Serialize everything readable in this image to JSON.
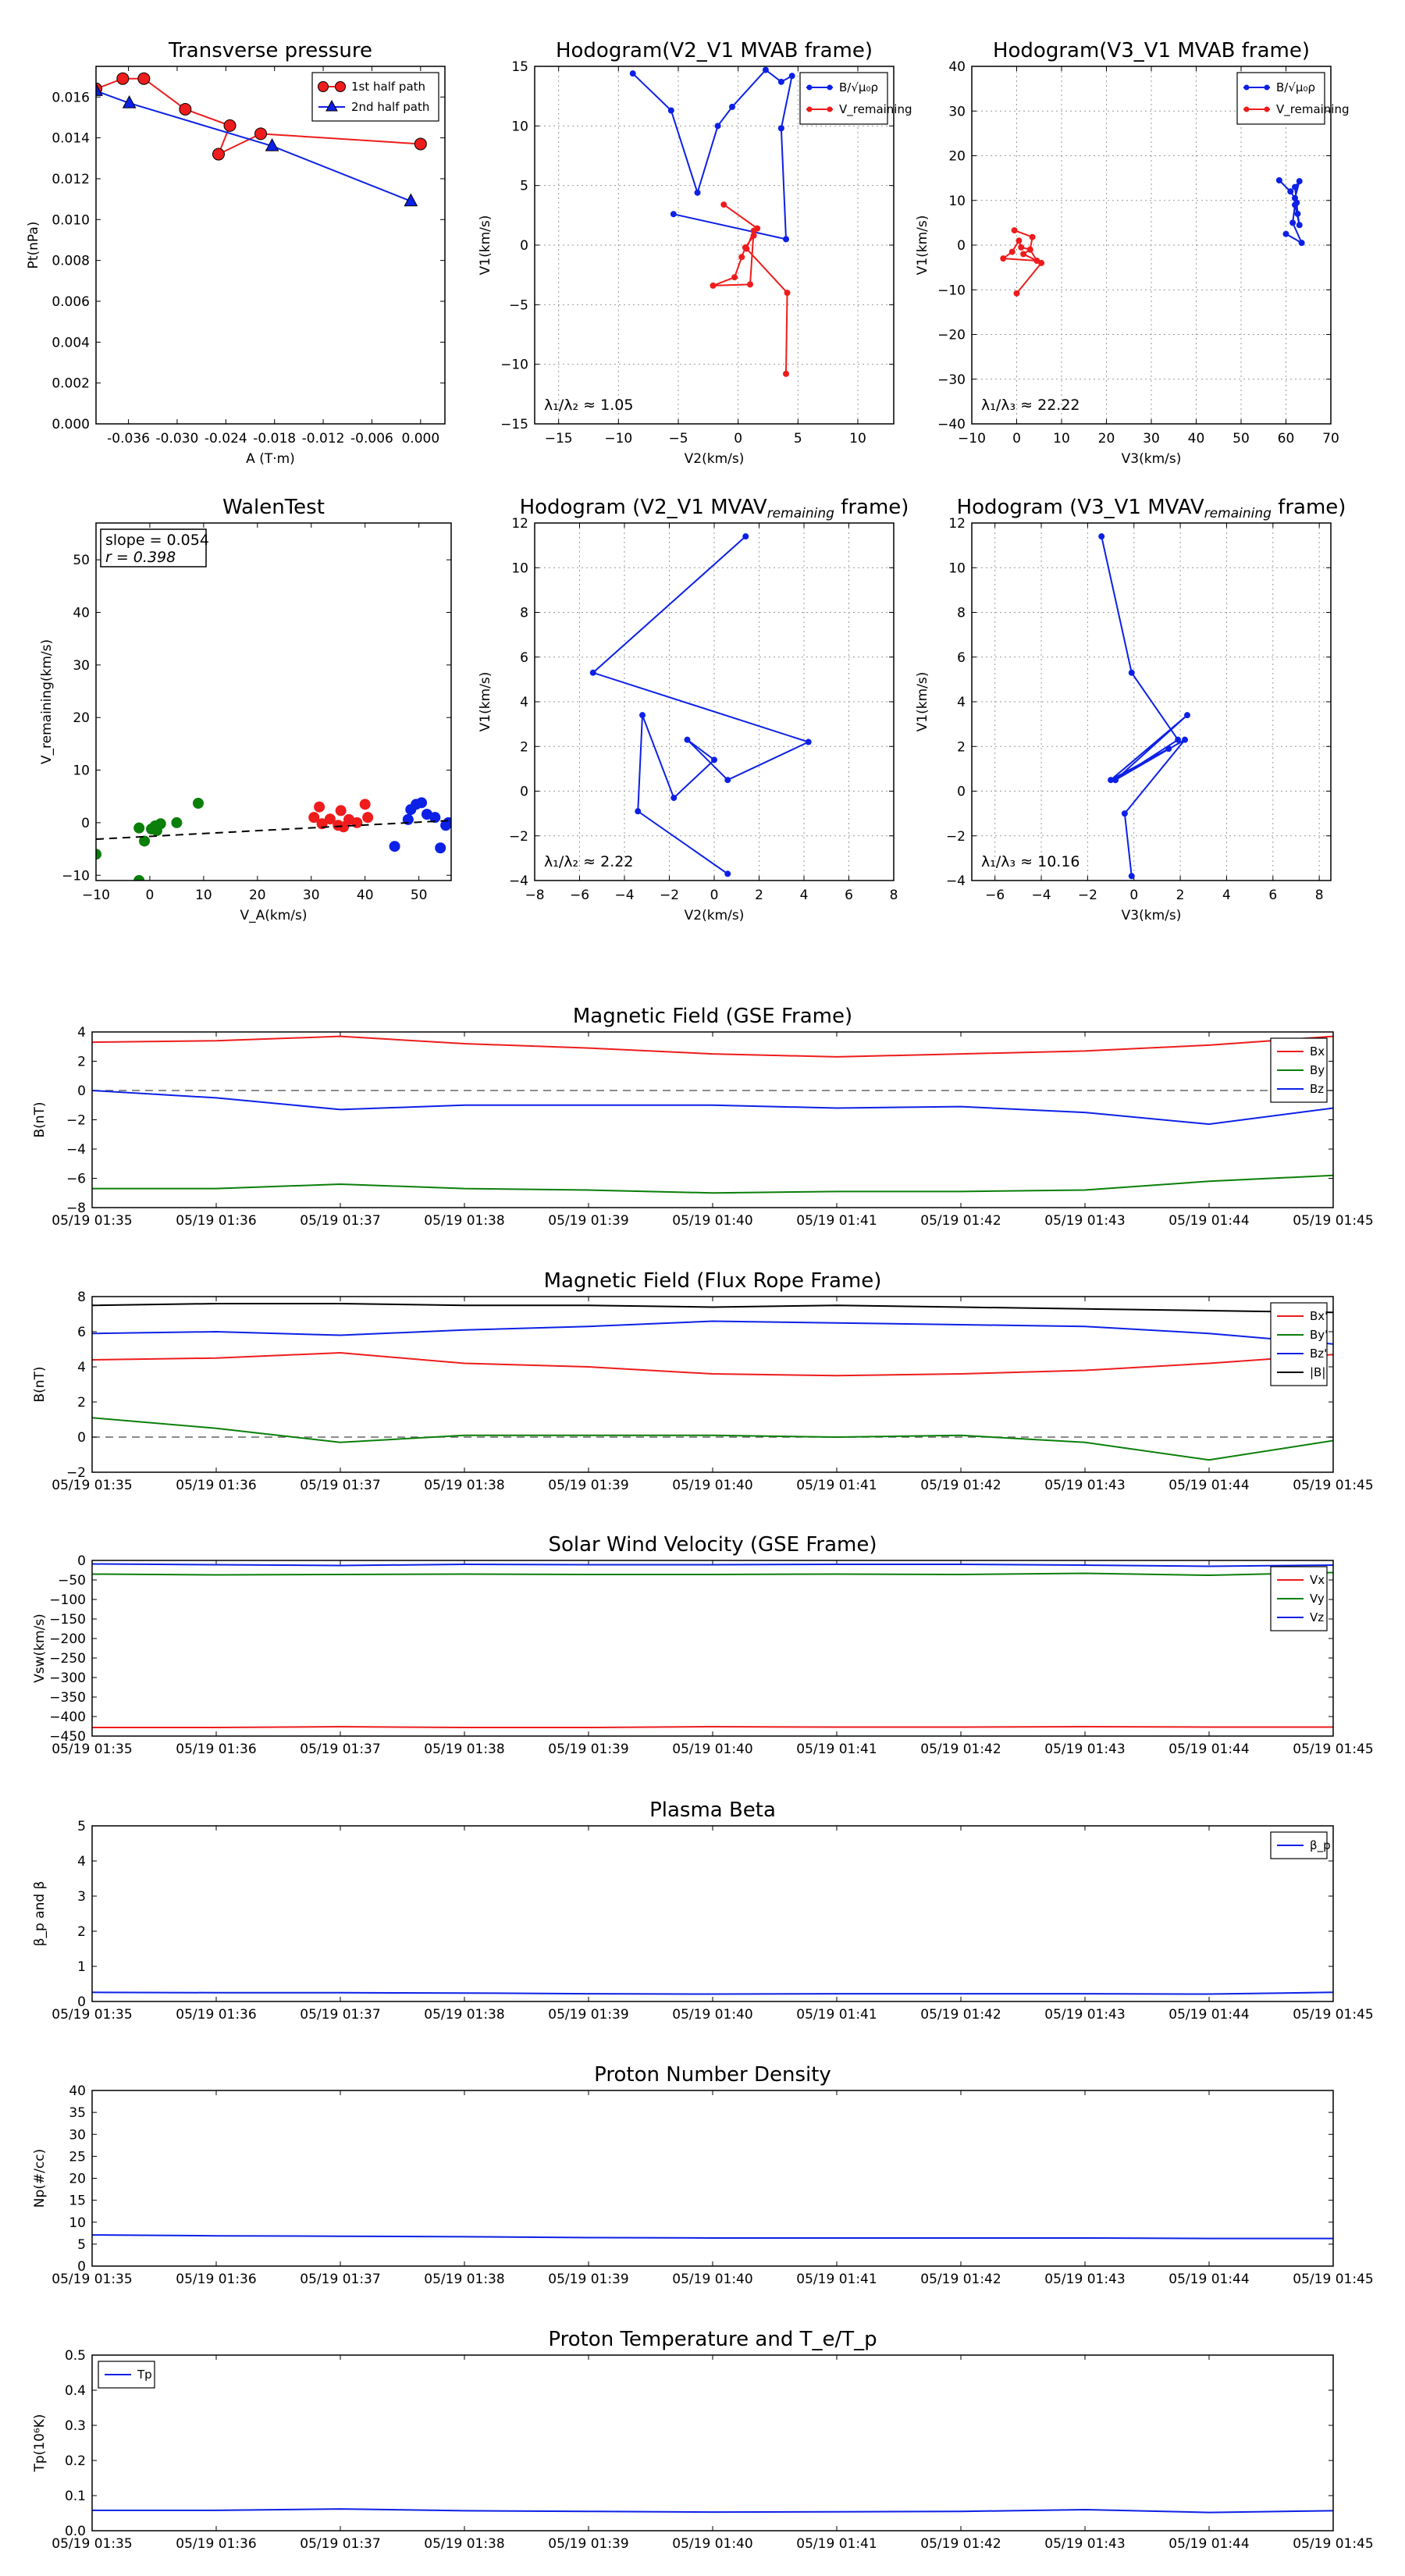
{
  "figure": {
    "colors": {
      "red": "#ee1c1c",
      "green": "#0a7f0a",
      "blue": "#0c20e6",
      "black": "#000000",
      "grid": "#999999",
      "dash": "#666666"
    }
  },
  "chart_data": [
    {
      "id": "tp",
      "type": "scatter",
      "title": "Transverse pressure",
      "xlabel": "A (T·m)",
      "ylabel": "Pt(nPa)",
      "xlim": [
        -0.04,
        0.003
      ],
      "ylim": [
        0,
        0.0175
      ],
      "xticks": [
        "-0.036",
        "-0.030",
        "-0.024",
        "-0.018",
        "-0.012",
        "-0.006",
        "0.000"
      ],
      "xtick_values": [
        -0.036,
        -0.03,
        -0.024,
        -0.018,
        -0.012,
        -0.006,
        0.0
      ],
      "yticks": [
        "0.000",
        "0.002",
        "0.004",
        "0.006",
        "0.008",
        "0.010",
        "0.012",
        "0.014",
        "0.016"
      ],
      "ytick_values": [
        0,
        0.002,
        0.004,
        0.006,
        0.008,
        0.01,
        0.012,
        0.014,
        0.016
      ],
      "grid": false,
      "legend": "upper right",
      "series": [
        {
          "name": "1st half path",
          "color": "red",
          "marker": "o",
          "x": [
            0.0,
            -0.0197,
            -0.0249,
            -0.0235,
            -0.029,
            -0.0341,
            -0.0367,
            -0.04
          ],
          "y": [
            0.0137,
            0.0142,
            0.0132,
            0.0146,
            0.0154,
            0.0169,
            0.0169,
            0.0164
          ]
        },
        {
          "name": "2nd half path",
          "color": "blue",
          "marker": "^",
          "x": [
            -0.04,
            -0.0359,
            -0.0183,
            -0.0012
          ],
          "y": [
            0.0163,
            0.0157,
            0.0136,
            0.0109
          ]
        }
      ]
    },
    {
      "id": "h1",
      "type": "line",
      "title": "Hodogram(V2_V1 MVAB frame)",
      "xlabel": "V2(km/s)",
      "ylabel": "V1(km/s)",
      "xlim": [
        -17,
        13
      ],
      "ylim": [
        -15,
        15
      ],
      "xticks": [
        "−15",
        "−10",
        "−5",
        "0",
        "5",
        "10"
      ],
      "xtick_values": [
        -15,
        -10,
        -5,
        0,
        5,
        10
      ],
      "yticks": [
        "−15",
        "−10",
        "−5",
        "0",
        "5",
        "10",
        "15"
      ],
      "ytick_values": [
        -15,
        -10,
        -5,
        0,
        5,
        10,
        15
      ],
      "grid": true,
      "legend": "upper right",
      "annotation": "λ₁/λ₂ ≈ 1.05",
      "series": [
        {
          "name": "B/√μ₀ρ",
          "color": "blue",
          "x": [
            -8.8,
            -5.6,
            -3.4,
            -1.7,
            -0.5,
            2.3,
            3.6,
            4.5,
            3.6,
            4.0,
            -5.4
          ],
          "y": [
            14.4,
            11.3,
            4.4,
            10.0,
            11.6,
            14.7,
            13.7,
            14.2,
            9.8,
            0.5,
            2.6
          ]
        },
        {
          "name": "V_remaining",
          "color": "red",
          "x": [
            -1.2,
            1.6,
            1.3,
            0.6,
            0.3,
            -0.3,
            -2.1,
            1.0,
            1.3,
            0.7,
            4.1,
            4.0
          ],
          "y": [
            3.4,
            1.4,
            0.8,
            -0.2,
            -1.0,
            -2.7,
            -3.4,
            -3.3,
            1.2,
            -0.3,
            -4.0,
            -10.8
          ]
        }
      ]
    },
    {
      "id": "h2",
      "type": "line",
      "title": "Hodogram(V3_V1 MVAB frame)",
      "xlabel": "V3(km/s)",
      "ylabel": "V1(km/s)",
      "xlim": [
        -10,
        70
      ],
      "ylim": [
        -40,
        40
      ],
      "xticks": [
        "−10",
        "0",
        "10",
        "20",
        "30",
        "40",
        "50",
        "60",
        "70"
      ],
      "xtick_values": [
        -10,
        0,
        10,
        20,
        30,
        40,
        50,
        60,
        70
      ],
      "yticks": [
        "−40",
        "−30",
        "−20",
        "−10",
        "0",
        "10",
        "20",
        "30",
        "40"
      ],
      "ytick_values": [
        -40,
        -30,
        -20,
        -10,
        0,
        10,
        20,
        30,
        40
      ],
      "grid": true,
      "legend": "upper right",
      "annotation": "λ₁/λ₃ ≈ 22.22",
      "series": [
        {
          "name": "B/√μ₀ρ",
          "color": "blue",
          "x": [
            58.5,
            61.0,
            62.0,
            63.0,
            62.0,
            62.4,
            62.6,
            63.0,
            62.0,
            61.5,
            63.5,
            60.0
          ],
          "y": [
            14.5,
            12.0,
            10.5,
            14.3,
            13.0,
            9.5,
            7.0,
            4.5,
            9.0,
            5.0,
            0.5,
            2.5
          ]
        },
        {
          "name": "V_remaining",
          "color": "red",
          "x": [
            -0.5,
            3.5,
            3.0,
            1.0,
            0.5,
            -1.0,
            -3.0,
            4.5,
            3.0,
            1.5,
            5.5,
            0.0
          ],
          "y": [
            3.3,
            1.8,
            -1.0,
            -0.5,
            1.0,
            -1.5,
            -3.0,
            -3.5,
            -1.0,
            -2.0,
            -4.0,
            -10.8
          ]
        }
      ]
    },
    {
      "id": "walen",
      "type": "scatter",
      "title": "WalenTest",
      "xlabel": "V_A(km/s)",
      "ylabel": "V_remaining(km/s)",
      "xlim": [
        -10,
        56
      ],
      "ylim": [
        -11,
        57
      ],
      "xticks": [
        "−10",
        "0",
        "10",
        "20",
        "30",
        "40",
        "50"
      ],
      "xtick_values": [
        -10,
        0,
        10,
        20,
        30,
        40,
        50
      ],
      "yticks": [
        "−10",
        "0",
        "10",
        "20",
        "30",
        "40",
        "50"
      ],
      "ytick_values": [
        -10,
        0,
        10,
        20,
        30,
        40,
        50
      ],
      "grid": false,
      "annotation": [
        "slope = 0.054",
        "r = 0.398"
      ],
      "fit": {
        "slope": 0.054,
        "intercept": -2.6
      },
      "series": [
        {
          "color": "green",
          "x": [
            -10.0,
            -2.0,
            -1.0,
            0.3,
            1.0,
            1.3,
            2.0,
            5.0,
            9.0,
            -2.0
          ],
          "y": [
            -6.0,
            -1.0,
            -3.5,
            -1.2,
            -0.6,
            -1.5,
            -0.2,
            0.0,
            3.7,
            -11.0
          ]
        },
        {
          "color": "red",
          "x": [
            30.5,
            31.5,
            32.0,
            33.5,
            35.0,
            35.5,
            36.0,
            37.0,
            38.5,
            40.0,
            40.5
          ],
          "y": [
            1.0,
            3.0,
            -0.2,
            0.7,
            -0.5,
            2.3,
            -0.8,
            0.6,
            0.0,
            3.5,
            1.0
          ]
        },
        {
          "color": "blue",
          "x": [
            45.5,
            48.0,
            48.5,
            49.5,
            50.5,
            51.5,
            53.0,
            54.0,
            55.0,
            55.5
          ],
          "y": [
            -4.5,
            0.6,
            2.5,
            3.5,
            3.8,
            1.6,
            1.0,
            -4.8,
            -0.5,
            0.0
          ]
        }
      ]
    },
    {
      "id": "h3",
      "type": "line",
      "title": "Hodogram (V2_V1 MVAV",
      "title_sub": "remaining",
      "title_end": " frame)",
      "xlabel": "V2(km/s)",
      "ylabel": "V1(km/s)",
      "xlim": [
        -8,
        8
      ],
      "ylim": [
        -4,
        12
      ],
      "xticks": [
        "−8",
        "−6",
        "−4",
        "−2",
        "0",
        "2",
        "4",
        "6",
        "8"
      ],
      "xtick_values": [
        -8,
        -6,
        -4,
        -2,
        0,
        2,
        4,
        6,
        8
      ],
      "yticks": [
        "−4",
        "−2",
        "0",
        "2",
        "4",
        "6",
        "8",
        "10",
        "12"
      ],
      "ytick_values": [
        -4,
        -2,
        0,
        2,
        4,
        6,
        8,
        10,
        12
      ],
      "grid": true,
      "annotation": "λ₁/λ₂ ≈ 2.22",
      "series": [
        {
          "color": "blue",
          "x": [
            1.4,
            -5.4,
            4.2,
            0.6,
            -1.2,
            0.0,
            -1.8,
            -3.2,
            -3.4,
            0.6
          ],
          "y": [
            11.4,
            5.3,
            2.2,
            0.5,
            2.3,
            1.4,
            -0.3,
            3.4,
            -0.9,
            -3.7
          ]
        }
      ]
    },
    {
      "id": "h4",
      "type": "line",
      "title": "Hodogram (V3_V1 MVAV",
      "title_sub": "remaining",
      "title_end": " frame)",
      "xlabel": "V3(km/s)",
      "ylabel": "V1(km/s)",
      "xlim": [
        -7,
        8.5
      ],
      "ylim": [
        -4,
        12
      ],
      "xticks": [
        "−6",
        "−4",
        "−2",
        "0",
        "2",
        "4",
        "6",
        "8"
      ],
      "xtick_values": [
        -6,
        -4,
        -2,
        0,
        2,
        4,
        6,
        8
      ],
      "yticks": [
        "−4",
        "−2",
        "0",
        "2",
        "4",
        "6",
        "8",
        "10",
        "12"
      ],
      "ytick_values": [
        -4,
        -2,
        0,
        2,
        4,
        6,
        8,
        10,
        12
      ],
      "grid": true,
      "annotation": "λ₁/λ₃ ≈ 10.16",
      "series": [
        {
          "color": "blue",
          "x": [
            -1.4,
            -0.1,
            1.9,
            -0.8,
            2.3,
            -1.0,
            1.5,
            -0.8,
            2.2,
            -0.4,
            -0.1
          ],
          "y": [
            11.4,
            5.3,
            2.3,
            0.5,
            3.4,
            0.5,
            1.9,
            0.5,
            2.3,
            -1.0,
            -3.8
          ]
        }
      ]
    },
    {
      "id": "bgse",
      "type": "line",
      "title": "Magnetic Field (GSE Frame)",
      "ylabel": "B(nT)",
      "ylim": [
        -8,
        4
      ],
      "yticks": [
        "−8",
        "−6",
        "−4",
        "−2",
        "0",
        "2",
        "4"
      ],
      "ytick_values": [
        -8,
        -6,
        -4,
        -2,
        0,
        2,
        4
      ],
      "zero_line": true,
      "legend": "upper right",
      "series": [
        {
          "name": "Bx",
          "color": "red",
          "y": [
            3.3,
            3.4,
            3.7,
            3.2,
            2.9,
            2.5,
            2.3,
            2.5,
            2.7,
            3.1,
            3.7
          ]
        },
        {
          "name": "By",
          "color": "green",
          "y": [
            -6.7,
            -6.7,
            -6.4,
            -6.7,
            -6.8,
            -7.0,
            -6.9,
            -6.9,
            -6.8,
            -6.2,
            -5.8
          ]
        },
        {
          "name": "Bz",
          "color": "blue",
          "y": [
            0.0,
            -0.5,
            -1.3,
            -1.0,
            -1.0,
            -1.0,
            -1.2,
            -1.1,
            -1.5,
            -2.3,
            -1.2
          ]
        }
      ]
    },
    {
      "id": "bfr",
      "type": "line",
      "title": "Magnetic Field (Flux Rope Frame)",
      "ylabel": "B(nT)",
      "ylim": [
        -2,
        8
      ],
      "yticks": [
        "−2",
        "0",
        "2",
        "4",
        "6",
        "8"
      ],
      "ytick_values": [
        -2,
        0,
        2,
        4,
        6,
        8
      ],
      "zero_line": true,
      "legend": "upper right",
      "series": [
        {
          "name": "Bx'",
          "color": "red",
          "y": [
            4.4,
            4.5,
            4.8,
            4.2,
            4.0,
            3.6,
            3.5,
            3.6,
            3.8,
            4.2,
            4.7
          ]
        },
        {
          "name": "By'",
          "color": "green",
          "y": [
            1.1,
            0.5,
            -0.3,
            0.1,
            0.1,
            0.1,
            0.0,
            0.1,
            -0.3,
            -1.3,
            -0.2
          ]
        },
        {
          "name": "Bz'",
          "color": "blue",
          "y": [
            5.9,
            6.0,
            5.8,
            6.1,
            6.3,
            6.6,
            6.5,
            6.4,
            6.3,
            5.9,
            5.3
          ]
        },
        {
          "name": "|B|",
          "color": "black",
          "y": [
            7.5,
            7.6,
            7.6,
            7.5,
            7.5,
            7.4,
            7.5,
            7.4,
            7.3,
            7.2,
            7.1
          ]
        }
      ]
    },
    {
      "id": "vsw",
      "type": "line",
      "title": "Solar Wind Velocity (GSE Frame)",
      "ylabel": "Vsw(km/s)",
      "ylim": [
        -450,
        0
      ],
      "yticks": [
        "−450",
        "−400",
        "−350",
        "−300",
        "−250",
        "−200",
        "−150",
        "−100",
        "−50",
        "0"
      ],
      "ytick_values": [
        -450,
        -400,
        -350,
        -300,
        -250,
        -200,
        -150,
        -100,
        -50,
        0
      ],
      "legend": "upper right",
      "series": [
        {
          "name": "Vx",
          "color": "red",
          "y": [
            -428,
            -428,
            -426,
            -428,
            -428,
            -426,
            -427,
            -427,
            -426,
            -427,
            -427
          ]
        },
        {
          "name": "Vy",
          "color": "green",
          "y": [
            -35,
            -37,
            -36,
            -35,
            -36,
            -36,
            -35,
            -36,
            -33,
            -38,
            -31
          ]
        },
        {
          "name": "Vz",
          "color": "blue",
          "y": [
            -9,
            -11,
            -13,
            -10,
            -11,
            -11,
            -10,
            -10,
            -12,
            -15,
            -12
          ]
        }
      ]
    },
    {
      "id": "beta",
      "type": "line",
      "title": "Plasma Beta",
      "ylabel": "β_p and β",
      "ylim": [
        0,
        5
      ],
      "yticks": [
        "0",
        "1",
        "2",
        "3",
        "4",
        "5"
      ],
      "ytick_values": [
        0,
        1,
        2,
        3,
        4,
        5
      ],
      "legend": "upper right",
      "series": [
        {
          "name": "β_p",
          "color": "blue",
          "y": [
            0.26,
            0.25,
            0.25,
            0.24,
            0.22,
            0.21,
            0.22,
            0.22,
            0.22,
            0.21,
            0.26
          ]
        }
      ]
    },
    {
      "id": "np",
      "type": "line",
      "title": "Proton Number Density",
      "ylabel": "Np(#/cc)",
      "ylim": [
        0,
        40
      ],
      "yticks": [
        "0",
        "5",
        "10",
        "15",
        "20",
        "25",
        "30",
        "35",
        "40"
      ],
      "ytick_values": [
        0,
        5,
        10,
        15,
        20,
        25,
        30,
        35,
        40
      ],
      "series": [
        {
          "color": "blue",
          "y": [
            7.1,
            6.9,
            6.8,
            6.7,
            6.5,
            6.4,
            6.4,
            6.4,
            6.4,
            6.3,
            6.3
          ]
        }
      ]
    },
    {
      "id": "tpr",
      "type": "line",
      "title": "Proton Temperature and T_e/T_p",
      "ylabel": "Tp(10⁶K)",
      "ylim": [
        0,
        0.5
      ],
      "yticks": [
        "0.0",
        "0.1",
        "0.2",
        "0.3",
        "0.4",
        "0.5"
      ],
      "ytick_values": [
        0,
        0.1,
        0.2,
        0.3,
        0.4,
        0.5
      ],
      "legend": "upper left",
      "series": [
        {
          "name": "Tp",
          "color": "blue",
          "y": [
            0.058,
            0.058,
            0.062,
            0.057,
            0.055,
            0.053,
            0.054,
            0.055,
            0.06,
            0.052,
            0.057
          ]
        }
      ]
    }
  ],
  "time_axis": [
    "05/19 01:35",
    "05/19 01:36",
    "05/19 01:37",
    "05/19 01:38",
    "05/19 01:39",
    "05/19 01:40",
    "05/19 01:41",
    "05/19 01:42",
    "05/19 01:43",
    "05/19 01:44",
    "05/19 01:45"
  ]
}
